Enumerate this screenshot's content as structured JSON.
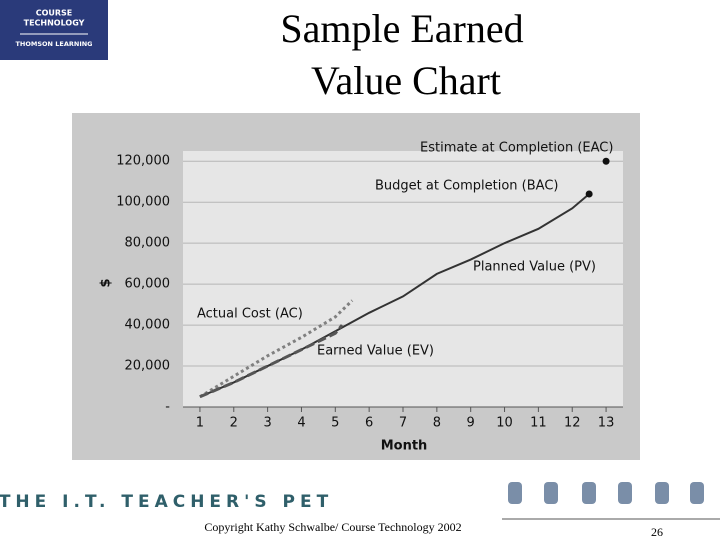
{
  "slide": {
    "title_line1": "Sample Earned",
    "title_line2": "Value Chart",
    "logo_line1": "COURSE",
    "logo_line2": "TECHNOLOGY",
    "logo_line3": "THOMSON LEARNING",
    "banner": "THE I.T. TEACHER'S PET",
    "copyright": "Copyright Kathy Schwalbe/ Course Technology 2002",
    "page_number": "26"
  },
  "chart_data": {
    "type": "line",
    "xlabel": "Month",
    "ylabel": "$",
    "xlim": [
      0.5,
      13.5
    ],
    "xticks": [
      1,
      2,
      3,
      4,
      5,
      6,
      7,
      8,
      9,
      10,
      11,
      12,
      13
    ],
    "ylim": [
      0,
      125000
    ],
    "yticks": [
      {
        "value": 0,
        "label": "-"
      },
      {
        "value": 20000,
        "label": "20,000"
      },
      {
        "value": 40000,
        "label": "40,000"
      },
      {
        "value": 60000,
        "label": "60,000"
      },
      {
        "value": 80000,
        "label": "80,000"
      },
      {
        "value": 100000,
        "label": "100,000"
      },
      {
        "value": 120000,
        "label": "120,000"
      }
    ],
    "grid": true,
    "series": [
      {
        "name": "Planned Value (PV)",
        "color": "#333333",
        "style": "solid",
        "x": [
          1,
          2,
          3,
          4,
          5,
          6,
          7,
          8,
          9,
          10,
          11,
          12,
          12.5
        ],
        "values": [
          5000,
          12000,
          20000,
          28000,
          37000,
          46000,
          54000,
          65000,
          72000,
          80000,
          87000,
          97000,
          104000
        ]
      },
      {
        "name": "Actual Cost (AC)",
        "color": "#808080",
        "style": "dotted",
        "x": [
          1,
          2,
          3,
          4,
          5,
          5.5
        ],
        "values": [
          5000,
          15000,
          25000,
          34000,
          44000,
          52000
        ]
      },
      {
        "name": "Earned Value (EV)",
        "color": "#555555",
        "style": "dashed",
        "x": [
          1,
          2,
          3,
          4,
          5,
          5.2
        ],
        "values": [
          5000,
          12000,
          20000,
          28000,
          36000,
          40000
        ]
      }
    ],
    "points": [
      {
        "label": "Estimate at Completion (EAC)",
        "x": 13,
        "y": 120000
      },
      {
        "label": "Budget at Completion (BAC)",
        "x": 12.5,
        "y": 104000
      }
    ]
  }
}
